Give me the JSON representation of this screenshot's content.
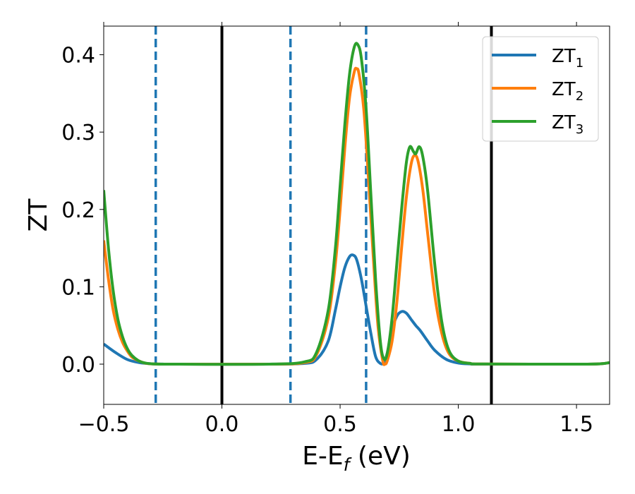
{
  "chart_data": {
    "type": "line",
    "xlabel": "E-E",
    "xlabel_sub": "f",
    "xlabel_unit": " (eV)",
    "ylabel": "ZT",
    "xlim": [
      -0.5,
      1.64
    ],
    "ylim": [
      -0.052,
      0.437
    ],
    "xticks": [
      -0.5,
      0.0,
      0.5,
      1.0,
      1.5
    ],
    "xtick_labels": [
      "−0.5",
      "0.0",
      "0.5",
      "1.0",
      "1.5"
    ],
    "yticks": [
      0.0,
      0.1,
      0.2,
      0.3,
      0.4
    ],
    "ytick_labels": [
      "0.0",
      "0.1",
      "0.2",
      "0.3",
      "0.4"
    ],
    "grid": false,
    "legend_position": "upper right",
    "vlines": [
      {
        "x": -0.28,
        "style": "dashed",
        "color": "#1f77b4"
      },
      {
        "x": 0.0,
        "style": "solid",
        "color": "#000000"
      },
      {
        "x": 0.29,
        "style": "dashed",
        "color": "#1f77b4"
      },
      {
        "x": 0.61,
        "style": "dashed",
        "color": "#1f77b4"
      },
      {
        "x": 1.14,
        "style": "solid",
        "color": "#000000"
      }
    ],
    "series": [
      {
        "name": "ZT",
        "sub": "1",
        "color": "#1f77b4",
        "x": [
          -0.5,
          -0.45,
          -0.4,
          -0.35,
          -0.3,
          -0.25,
          -0.2,
          0.2,
          0.35,
          0.4,
          0.45,
          0.48,
          0.5,
          0.52,
          0.54,
          0.555,
          0.57,
          0.59,
          0.61,
          0.63,
          0.65,
          0.67,
          0.685,
          0.7,
          0.72,
          0.74,
          0.76,
          0.78,
          0.8,
          0.82,
          0.84,
          0.87,
          0.9,
          0.95,
          1.0,
          1.05,
          1.1,
          1.5,
          1.6,
          1.64
        ],
        "y": [
          0.026,
          0.015,
          0.006,
          0.002,
          0.0005,
          0.0001,
          0.0,
          0.0,
          0.001,
          0.006,
          0.03,
          0.07,
          0.1,
          0.125,
          0.139,
          0.141,
          0.135,
          0.11,
          0.075,
          0.04,
          0.01,
          0.001,
          0.002,
          0.015,
          0.045,
          0.062,
          0.068,
          0.066,
          0.058,
          0.05,
          0.043,
          0.03,
          0.018,
          0.006,
          0.0015,
          0.0003,
          0.0,
          0.0,
          0.0005,
          0.002
        ]
      },
      {
        "name": "ZT",
        "sub": "2",
        "color": "#ff7f0e",
        "x": [
          -0.5,
          -0.48,
          -0.46,
          -0.44,
          -0.42,
          -0.4,
          -0.38,
          -0.35,
          -0.32,
          -0.28,
          -0.2,
          0.2,
          0.35,
          0.4,
          0.45,
          0.48,
          0.5,
          0.52,
          0.54,
          0.56,
          0.57,
          0.58,
          0.6,
          0.62,
          0.64,
          0.66,
          0.68,
          0.69,
          0.7,
          0.72,
          0.74,
          0.76,
          0.78,
          0.8,
          0.815,
          0.83,
          0.85,
          0.87,
          0.9,
          0.93,
          0.96,
          1.0,
          1.05,
          1.1,
          1.5,
          1.6,
          1.64
        ],
        "y": [
          0.16,
          0.11,
          0.07,
          0.045,
          0.028,
          0.017,
          0.009,
          0.004,
          0.001,
          0.0002,
          0.0,
          0.0,
          0.002,
          0.012,
          0.06,
          0.13,
          0.2,
          0.28,
          0.345,
          0.378,
          0.382,
          0.375,
          0.33,
          0.24,
          0.14,
          0.05,
          0.005,
          0.0,
          0.005,
          0.03,
          0.08,
          0.15,
          0.215,
          0.258,
          0.27,
          0.262,
          0.225,
          0.17,
          0.09,
          0.04,
          0.014,
          0.004,
          0.001,
          0.0002,
          0.0,
          0.0005,
          0.002
        ]
      },
      {
        "name": "ZT",
        "sub": "3",
        "color": "#2ca02c",
        "x": [
          -0.5,
          -0.48,
          -0.46,
          -0.44,
          -0.42,
          -0.4,
          -0.38,
          -0.35,
          -0.32,
          -0.28,
          -0.2,
          0.2,
          0.35,
          0.4,
          0.45,
          0.48,
          0.5,
          0.52,
          0.54,
          0.56,
          0.575,
          0.59,
          0.61,
          0.63,
          0.65,
          0.67,
          0.685,
          0.7,
          0.72,
          0.74,
          0.76,
          0.78,
          0.795,
          0.81,
          0.82,
          0.835,
          0.85,
          0.87,
          0.9,
          0.93,
          0.96,
          1.0,
          1.05,
          1.1,
          1.5,
          1.6,
          1.64
        ],
        "y": [
          0.225,
          0.15,
          0.095,
          0.058,
          0.035,
          0.02,
          0.011,
          0.004,
          0.0012,
          0.0002,
          0.0,
          0.0,
          0.003,
          0.015,
          0.07,
          0.15,
          0.23,
          0.31,
          0.375,
          0.41,
          0.413,
          0.395,
          0.33,
          0.22,
          0.11,
          0.03,
          0.007,
          0.015,
          0.06,
          0.13,
          0.2,
          0.26,
          0.281,
          0.275,
          0.272,
          0.281,
          0.268,
          0.225,
          0.13,
          0.055,
          0.018,
          0.004,
          0.001,
          0.0002,
          0.0,
          0.0005,
          0.002
        ]
      }
    ]
  }
}
